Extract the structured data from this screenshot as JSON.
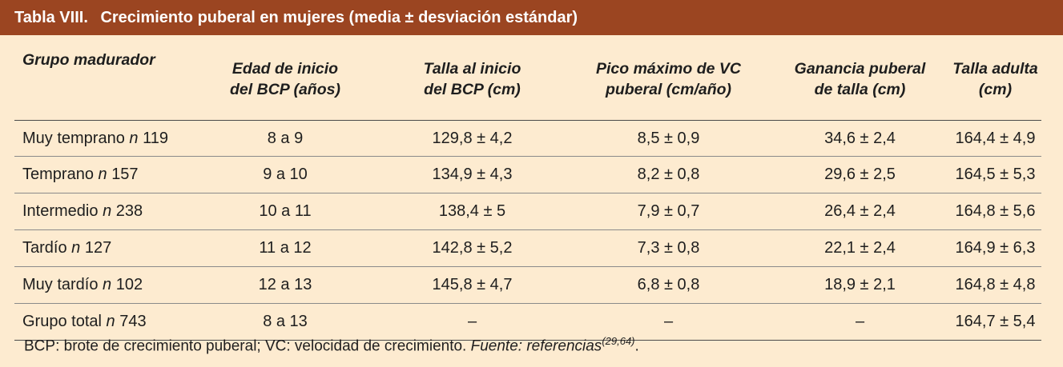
{
  "title": {
    "number": "Tabla VIII.",
    "text": "Crecimiento puberal en mujeres (media ± desviación estándar)"
  },
  "headers": [
    {
      "line1": "Grupo madurador",
      "line2": ""
    },
    {
      "line1": "Edad de inicio",
      "line2": "del BCP (años)"
    },
    {
      "line1": "Talla al inicio",
      "line2": "del BCP (cm)"
    },
    {
      "line1": "Pico máximo de VC",
      "line2": "puberal (cm/año)"
    },
    {
      "line1": "Ganancia puberal",
      "line2": "de talla (cm)"
    },
    {
      "line1": "Talla adulta",
      "line2": "(cm)"
    }
  ],
  "rows": [
    {
      "group": "Muy temprano",
      "n_label": "n",
      "n": "119",
      "cells": [
        "8 a 9",
        "129,8 ± 4,2",
        "8,5 ± 0,9",
        "34,6 ± 2,4",
        "164,4 ± 4,9"
      ]
    },
    {
      "group": "Temprano",
      "n_label": "n",
      "n": "157",
      "cells": [
        "9 a 10",
        "134,9 ± 4,3",
        "8,2 ± 0,8",
        "29,6 ± 2,5",
        "164,5 ± 5,3"
      ]
    },
    {
      "group": "Intermedio",
      "n_label": "n",
      "n": "238",
      "cells": [
        "10 a 11",
        "138,4 ± 5",
        "7,9 ± 0,7",
        "26,4 ± 2,4",
        "164,8 ± 5,6"
      ]
    },
    {
      "group": "Tardío",
      "n_label": "n",
      "n": "127",
      "cells": [
        "11 a 12",
        "142,8 ± 5,2",
        "7,3 ± 0,8",
        "22,1 ± 2,4",
        "164,9 ± 6,3"
      ]
    },
    {
      "group": "Muy tardío",
      "n_label": "n",
      "n": "102",
      "cells": [
        "12 a 13",
        "145,8 ± 4,7",
        "6,8 ± 0,8",
        "18,9 ± 2,1",
        "164,8 ± 4,8"
      ]
    },
    {
      "group": "Grupo total",
      "n_label": "n",
      "n": "743",
      "cells": [
        "8 a 13",
        "–",
        "–",
        "–",
        "164,7 ± 5,4"
      ]
    }
  ],
  "footnote": {
    "text": "BCP: brote de crecimiento puberal;  VC: velocidad de crecimiento.",
    "source_label": "Fuente: referencias",
    "source_refs": "(29,64)",
    "end": "."
  },
  "colors": {
    "title_bg": "#9b4521",
    "page_bg": "#fdebd0"
  }
}
